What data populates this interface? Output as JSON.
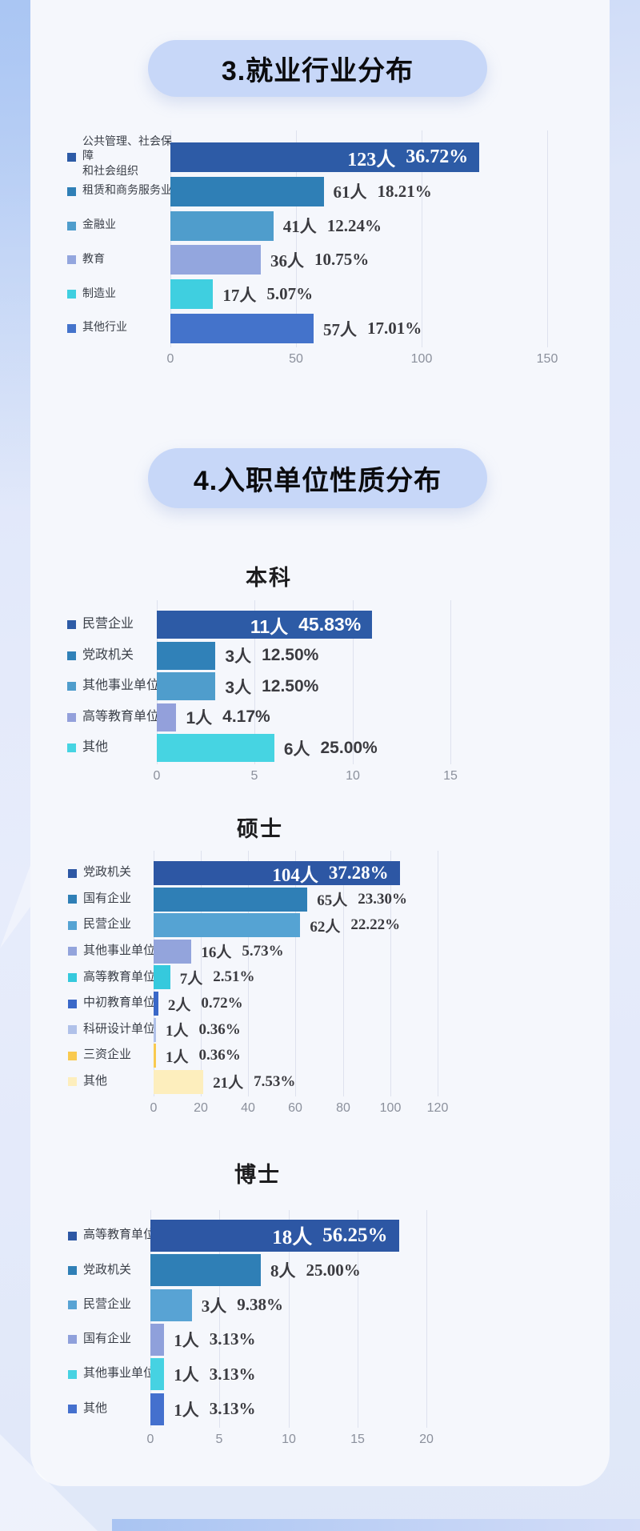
{
  "section_badges": [
    {
      "label": "3.就业行业分布"
    },
    {
      "label": "4.入职单位性质分布"
    }
  ],
  "colors": {
    "badge_bg": "#c7d7f8",
    "panel_bg": "#f5f7fc",
    "page_bg": "#dfe7f8",
    "tick_text": "#8b909c",
    "value_text": "#3b3b40",
    "inside_value_text": "#ffffff"
  },
  "chart_data": [
    {
      "type": "bar",
      "orientation": "horizontal",
      "title": "",
      "section": "3.就业行业分布",
      "legend_position": "left",
      "grid": true,
      "categories": [
        "公共管理、社会保障\n和社会组织",
        "租赁和商务服务业",
        "金融业",
        "教育",
        "制造业",
        "其他行业"
      ],
      "values": [
        123,
        61,
        41,
        36,
        17,
        57
      ],
      "counts": [
        "123人",
        "61人",
        "41人",
        "36人",
        "17人",
        "57人"
      ],
      "pcts": [
        "36.72%",
        "18.21%",
        "12.24%",
        "10.75%",
        "5.07%",
        "17.01%"
      ],
      "colors": [
        "#2d5ba6",
        "#2f7fb6",
        "#4f9dcc",
        "#93a6de",
        "#3fcfe0",
        "#4473cb"
      ],
      "xlim": [
        0,
        150
      ],
      "ticks": [
        0,
        50,
        100,
        150
      ]
    },
    {
      "type": "bar",
      "orientation": "horizontal",
      "title": "本科",
      "section": "4.入职单位性质分布",
      "legend_position": "left",
      "grid": true,
      "categories": [
        "民营企业",
        "党政机关",
        "其他事业单位",
        "高等教育单位",
        "其他"
      ],
      "values": [
        11,
        3,
        3,
        1,
        6
      ],
      "counts": [
        "11人",
        "3人",
        "3人",
        "1人",
        "6人"
      ],
      "pcts": [
        "45.83%",
        "12.50%",
        "12.50%",
        "4.17%",
        "25.00%"
      ],
      "colors": [
        "#2d5ba6",
        "#3081b8",
        "#4f9dcc",
        "#93a0db",
        "#46d4e2"
      ],
      "xlim": [
        0,
        15
      ],
      "ticks": [
        0,
        5,
        10,
        15
      ]
    },
    {
      "type": "bar",
      "orientation": "horizontal",
      "title": "硕士",
      "section": "4.入职单位性质分布",
      "legend_position": "left",
      "grid": true,
      "categories": [
        "党政机关",
        "国有企业",
        "民营企业",
        "其他事业单位",
        "高等教育单位",
        "中初教育单位",
        "科研设计单位",
        "三资企业",
        "其他"
      ],
      "values": [
        104,
        65,
        62,
        16,
        7,
        2,
        1,
        1,
        21
      ],
      "counts": [
        "104人",
        "65人",
        "62人",
        "16人",
        "7人",
        "2人",
        "1人",
        "1人",
        "21人"
      ],
      "pcts": [
        "37.28%",
        "23.30%",
        "22.22%",
        "5.73%",
        "2.51%",
        "0.72%",
        "0.36%",
        "0.36%",
        "7.53%"
      ],
      "colors": [
        "#2d57a4",
        "#2f7fb6",
        "#55a3d3",
        "#93a4dc",
        "#35c9dd",
        "#3a68c8",
        "#b0c1e9",
        "#f9ca4f",
        "#fdeebd"
      ],
      "xlim": [
        0,
        120
      ],
      "ticks": [
        0,
        20,
        40,
        60,
        80,
        100,
        120
      ]
    },
    {
      "type": "bar",
      "orientation": "horizontal",
      "title": "博士",
      "section": "4.入职单位性质分布",
      "legend_position": "left",
      "grid": true,
      "categories": [
        "高等教育单位",
        "党政机关",
        "民营企业",
        "国有企业",
        "其他事业单位",
        "其他"
      ],
      "values": [
        18,
        8,
        3,
        1,
        1,
        1
      ],
      "counts": [
        "18人",
        "8人",
        "3人",
        "1人",
        "1人",
        "1人"
      ],
      "pcts": [
        "56.25%",
        "25.00%",
        "9.38%",
        "3.13%",
        "3.13%",
        "3.13%"
      ],
      "colors": [
        "#2d57a4",
        "#2f7fb6",
        "#58a3d4",
        "#8fa0db",
        "#46d2e2",
        "#4470ce"
      ],
      "xlim": [
        0,
        20
      ],
      "ticks": [
        0,
        5,
        10,
        15,
        20
      ]
    }
  ]
}
